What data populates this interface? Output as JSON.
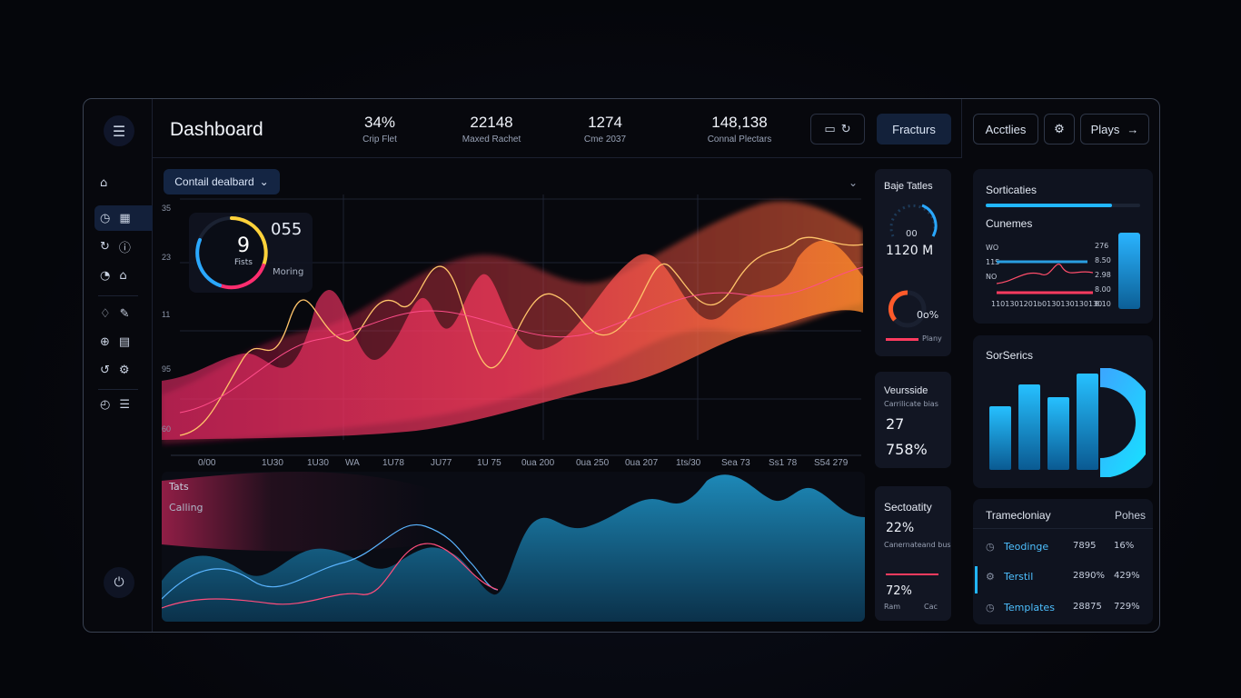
{
  "header": {
    "title": "Dashboard",
    "stats": [
      {
        "value": "34%",
        "label": "Crip Flet"
      },
      {
        "value": "22148",
        "label": "Maxed Rachet"
      },
      {
        "value": "1274",
        "label": "Cme 2037"
      },
      {
        "value": "148,138",
        "label": "Connal Plectars"
      }
    ],
    "fractions_label": "Fracturs"
  },
  "right_header": {
    "activities_label": "Acctlies",
    "plays_label": "Plays"
  },
  "main": {
    "dashboard_select": "Contail dealbard",
    "y_ticks": [
      "35",
      "23",
      "11",
      "95",
      "60"
    ],
    "x_ticks": [
      "0/00",
      "1U30",
      "1U30",
      "WA",
      "1U78",
      "JU77",
      "1U 75",
      "0ua 200",
      "0ua 250",
      "0ua 207",
      "1ts/30",
      "Sea 73",
      "Ss1 78",
      "S54 279"
    ],
    "gauge": {
      "value": "9",
      "label": "Fists",
      "side_value": "055",
      "side_label": "Moring"
    },
    "lower_label_1": "Tats",
    "lower_label_2": "Calling"
  },
  "mid_cards": {
    "card1": {
      "title": "Baje Tatles",
      "small": "00",
      "big": "1120 M",
      "gauge_value": "0o%",
      "legend": "Plany"
    },
    "card2": {
      "title": "Veursside",
      "small": "Carrilicate bias",
      "big1": "27",
      "big2": "758%"
    },
    "card3": {
      "title": "Sectoatity",
      "big1": "22%",
      "small": "Canernateand bus",
      "big2": "72%",
      "foot_l": "Ram",
      "foot_r": "Cac"
    }
  },
  "right": {
    "card1": {
      "title": "Sorticaties",
      "subtitle": "Cunemes",
      "left_labels": [
        "WO",
        "11S",
        "NO"
      ],
      "right_labels": [
        "276",
        "8.50",
        "2.98",
        "8.00",
        "8.10"
      ],
      "x_labels": [
        "110",
        "130",
        "120",
        "1b0",
        "130",
        "130",
        "130",
        "130"
      ]
    },
    "card2": {
      "title": "SorSerics"
    },
    "card3": {
      "title": "Tramecloniay",
      "right_title": "Pohes",
      "rows": [
        {
          "name": "Teodinge",
          "a": "7895",
          "b": "16%"
        },
        {
          "name": "Terstil",
          "a": "2890%",
          "b": "429%"
        },
        {
          "name": "Templates",
          "a": "28875",
          "b": "729%"
        }
      ]
    }
  },
  "colors": {
    "accent": "#ff2d6f",
    "orange": "#ff8a2a",
    "cyan": "#1bb8f0",
    "bg": "#07080d"
  }
}
